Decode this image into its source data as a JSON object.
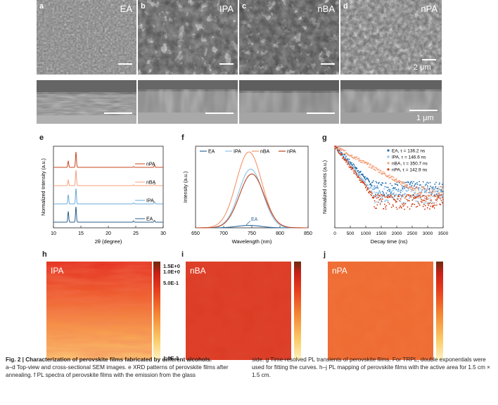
{
  "sem_top": [
    {
      "letter": "a",
      "label": "EA"
    },
    {
      "letter": "b",
      "label": "IPA"
    },
    {
      "letter": "c",
      "label": "nBA"
    },
    {
      "letter": "d",
      "label": "nPA",
      "scale": "2 μm"
    }
  ],
  "sem_cross_scale": "1 μm",
  "panel_e": {
    "letter": "e",
    "chart_data": {
      "type": "line",
      "title": "",
      "xlabel": "2θ (degree)",
      "ylabel": "Normalized Intensity (a.u.)",
      "xlim": [
        10,
        30
      ],
      "xticks": [
        10,
        15,
        20,
        25,
        30
      ],
      "peaks": [
        12.7,
        14.1,
        24.6,
        28.4
      ],
      "series": [
        {
          "name": "EA",
          "color": "#2e5f8a",
          "offset": 0,
          "heights": [
            0.7,
            1.0,
            0.08,
            0.12
          ]
        },
        {
          "name": "IPA",
          "color": "#6aaad8",
          "offset": 1,
          "heights": [
            0.6,
            1.0,
            0.06,
            0.14
          ]
        },
        {
          "name": "nBA",
          "color": "#f4a07c",
          "offset": 2,
          "heights": [
            0.35,
            1.0,
            0.05,
            0.12
          ]
        },
        {
          "name": "nPA",
          "color": "#c8491f",
          "offset": 3,
          "heights": [
            0.4,
            1.0,
            0.05,
            0.14
          ]
        }
      ]
    }
  },
  "panel_f": {
    "letter": "f",
    "annotation": "EA",
    "chart_data": {
      "type": "line",
      "xlabel": "Wavelength (nm)",
      "ylabel": "Intensity (a.u.)",
      "xlim": [
        650,
        850
      ],
      "xticks": [
        650,
        700,
        750,
        800,
        850
      ],
      "legend": [
        "EA",
        "IPA",
        "nBA",
        "nPA"
      ],
      "series": [
        {
          "name": "EA",
          "color": "#2e6a9c",
          "peak_nm": 745,
          "height": 0.03,
          "width": 30
        },
        {
          "name": "IPA",
          "color": "#8ec3ea",
          "peak_nm": 748,
          "height": 0.72,
          "width": 30
        },
        {
          "name": "nBA",
          "color": "#f4956a",
          "peak_nm": 745,
          "height": 0.93,
          "width": 32
        },
        {
          "name": "nPA",
          "color": "#b84420",
          "peak_nm": 750,
          "height": 0.66,
          "width": 31
        }
      ]
    }
  },
  "panel_g": {
    "letter": "g",
    "chart_data": {
      "type": "scatter",
      "xlabel": "Decay time (ns)",
      "ylabel": "Normalized counts (a.u.)",
      "xlim": [
        0,
        3500
      ],
      "xticks": [
        0,
        500,
        1000,
        1500,
        2000,
        2500,
        3000,
        3500
      ],
      "yscale": "log",
      "series": [
        {
          "name": "EA",
          "tau": "136.2",
          "color": "#1f6fb0",
          "tau_fit": 480,
          "floor": 0.07
        },
        {
          "name": "IPA",
          "tau": "146.6",
          "color": "#8ec3ea",
          "tau_fit": 420,
          "floor": 0.045
        },
        {
          "name": "nBA",
          "tau": "350.7",
          "color": "#f4a07c",
          "tau_fit": 900,
          "floor": 0.05
        },
        {
          "name": "nPA",
          "tau": "142.9",
          "color": "#cc3a10",
          "tau_fit": 380,
          "floor": 0.03
        }
      ],
      "legend_prefix": "τ = ",
      "legend_unit": " ns"
    }
  },
  "maps": {
    "h": {
      "letter": "h",
      "label": "IPA"
    },
    "i": {
      "letter": "i",
      "label": "nBA"
    },
    "j": {
      "letter": "j",
      "label": "nPA"
    },
    "colorbar_ticks": [
      "1.5E+0",
      "1.0E+0",
      "5.0E-1",
      "1.0E-3"
    ]
  },
  "caption": {
    "title": "Fig. 2 | Characterization of perovskite films fabricated by different alcohols.",
    "col1": "a–d Top-view and cross-sectional SEM images. e XRD patterns of perovskite films after annealing. f PL spectra of perovskite films with the emission from the glass",
    "col2": "side. g Time-resolved PL transients of perovskite films. For TRPL, double exponentials were used for fitting the curves. h–j PL mapping of perovskite films with the active area for 1.5 cm × 1.5 cm."
  }
}
